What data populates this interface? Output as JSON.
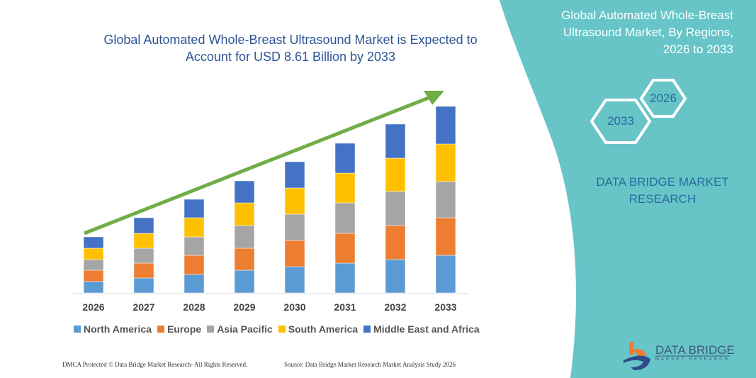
{
  "chart_data": {
    "type": "bar",
    "stacked": true,
    "title": "Global Automated Whole-Breast Ultrasound Market is Expected to Account for USD 8.61 Billion by 2033",
    "categories": [
      "2026",
      "2027",
      "2028",
      "2029",
      "2030",
      "2031",
      "2032",
      "2033"
    ],
    "series": [
      {
        "name": "North America",
        "color": "#5b9bd5",
        "values": [
          16,
          21,
          26,
          32,
          37,
          42,
          47,
          53
        ]
      },
      {
        "name": "Europe",
        "color": "#ed7d31",
        "values": [
          16,
          21,
          27,
          31,
          37,
          42,
          48,
          53
        ]
      },
      {
        "name": "Asia Pacific",
        "color": "#a5a5a5",
        "values": [
          15,
          21,
          26,
          32,
          37,
          43,
          48,
          51
        ]
      },
      {
        "name": "South America",
        "color": "#ffc000",
        "values": [
          16,
          21,
          27,
          32,
          37,
          42,
          47,
          53
        ]
      },
      {
        "name": "Middle East and Africa",
        "color": "#4472c4",
        "values": [
          16,
          22,
          26,
          31,
          37,
          42,
          48,
          53
        ]
      }
    ],
    "legend_position": "bottom",
    "grid": false,
    "trend_arrow_color": "#70ad47"
  },
  "side_panel": {
    "title_lines": [
      "Global Automated Whole-Breast",
      "Ultrasound Market, By Regions,",
      "2026 to 2033"
    ],
    "hex_start": "2026",
    "hex_end": "2033",
    "brand_lines": [
      "DATA BRIDGE MARKET",
      "RESEARCH"
    ],
    "color": "#67c5c8"
  },
  "logo": {
    "name": "DATA BRIDGE",
    "tagline": "MARKET RESEARCH"
  },
  "footer": {
    "copyright": "DMCA Protected © Data Bridge Market Research-  All Rights Reserved.",
    "source": "Source: Data Bridge Market Research  Market Analysis Study 2026"
  }
}
